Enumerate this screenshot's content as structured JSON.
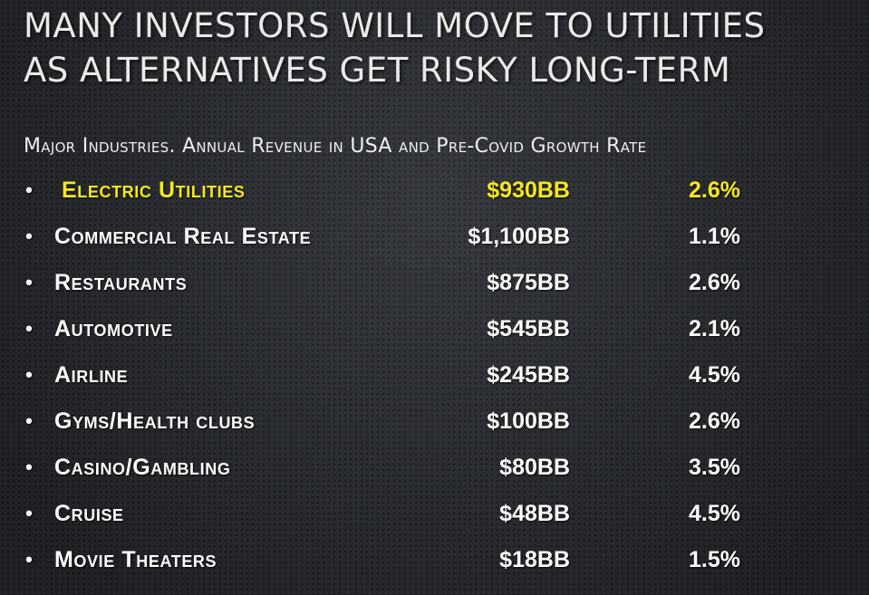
{
  "slide": {
    "title_line1": "Many investors will move to utilities",
    "title_line2": "as alternatives get risky long-term",
    "subtitle": "Major Industries. Annual Revenue in USA and Pre-Covid Growth Rate",
    "highlight_color": "#f5e81d",
    "rows": [
      {
        "industry": "Electric Utilities",
        "revenue": "$930BB",
        "growth": "2.6%"
      },
      {
        "industry": "Commercial Real Estate",
        "revenue": "$1,100BB",
        "growth": "1.1%"
      },
      {
        "industry": "Restaurants",
        "revenue": "$875BB",
        "growth": "2.6%"
      },
      {
        "industry": "Automotive",
        "revenue": "$545BB",
        "growth": "2.1%"
      },
      {
        "industry": "Airline",
        "revenue": "$245BB",
        "growth": "4.5%"
      },
      {
        "industry": "Gyms/Health clubs",
        "revenue": "$100BB",
        "growth": "2.6%"
      },
      {
        "industry": "Casino/Gambling",
        "revenue": "$80BB",
        "growth": "3.5%"
      },
      {
        "industry": "Cruise",
        "revenue": "$48BB",
        "growth": "4.5%"
      },
      {
        "industry": "Movie Theaters",
        "revenue": "$18BB",
        "growth": "1.5%"
      }
    ]
  }
}
